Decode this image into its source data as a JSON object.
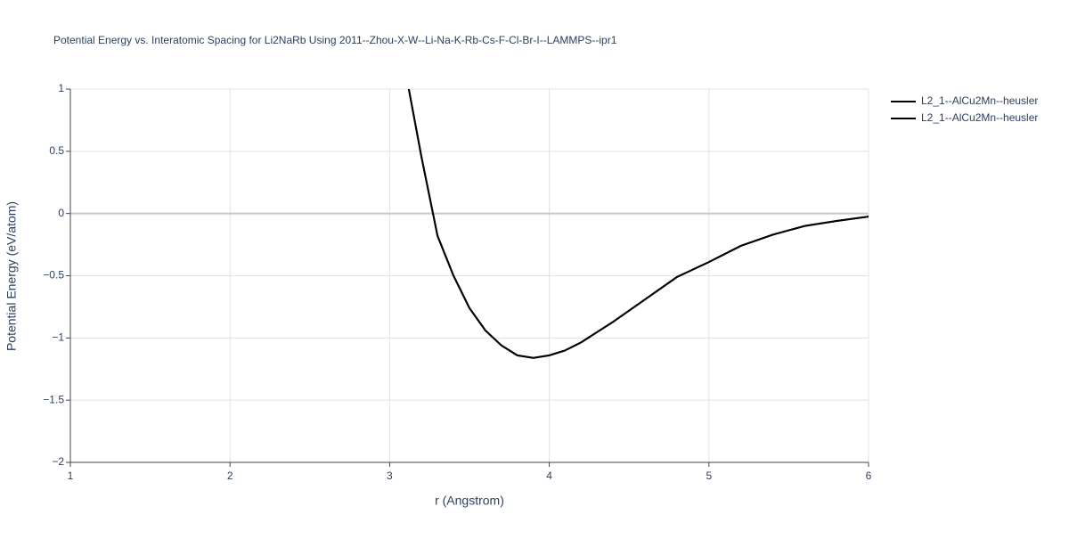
{
  "chart_data": {
    "type": "line",
    "title": "Potential Energy vs. Interatomic Spacing for Li2NaRb Using 2011--Zhou-X-W--Li-Na-K-Rb-Cs-F-Cl-Br-I--LAMMPS--ipr1",
    "x_label": "r (Angstrom)",
    "y_label": "Potential Energy (eV/atom)",
    "x": [
      3.12,
      3.2,
      3.3,
      3.4,
      3.5,
      3.6,
      3.7,
      3.8,
      3.9,
      4.0,
      4.1,
      4.2,
      4.4,
      4.6,
      4.8,
      5.0,
      5.2,
      5.4,
      5.6,
      5.8,
      6.0
    ],
    "series": [
      {
        "name": "L2_1--AlCu2Mn--heusler",
        "color": "#000000",
        "values": [
          1.0,
          0.45,
          -0.18,
          -0.5,
          -0.76,
          -0.94,
          -1.06,
          -1.14,
          -1.16,
          -1.14,
          -1.1,
          -1.035,
          -0.87,
          -0.69,
          -0.51,
          -0.39,
          -0.26,
          -0.17,
          -0.1,
          -0.06,
          -0.025
        ]
      },
      {
        "name": "L2_1--AlCu2Mn--heusler",
        "color": "#000000",
        "values": [
          1.0,
          0.45,
          -0.18,
          -0.5,
          -0.76,
          -0.94,
          -1.06,
          -1.14,
          -1.16,
          -1.14,
          -1.1,
          -1.035,
          -0.87,
          -0.69,
          -0.51,
          -0.39,
          -0.26,
          -0.17,
          -0.1,
          -0.06,
          -0.025
        ]
      }
    ],
    "xlim": [
      1,
      6
    ],
    "xticks": [
      1,
      2,
      3,
      4,
      5,
      6
    ],
    "ylim": [
      -2,
      1
    ],
    "yticks": [
      {
        "value": -2,
        "label": "−2"
      },
      {
        "value": -1.5,
        "label": "−1.5"
      },
      {
        "value": -1,
        "label": "−1"
      },
      {
        "value": -0.5,
        "label": "−0.5"
      },
      0,
      0.5,
      1
    ],
    "grid": true,
    "legend": "right"
  }
}
